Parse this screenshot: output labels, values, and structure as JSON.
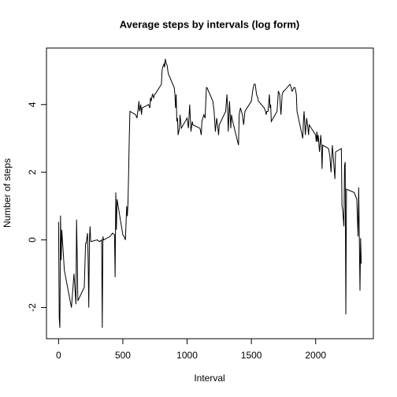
{
  "chart_data": {
    "type": "line",
    "title": "Average steps by intervals (log form)",
    "x_label": "Interval",
    "y_label": "Number of steps",
    "color": "#000000",
    "xlim": [
      -94.2,
      2449.2
    ],
    "ylim": [
      -2.92,
      5.67
    ],
    "xticks": [
      0,
      500,
      1000,
      1500,
      2000
    ],
    "yticks": [
      -2,
      0,
      2,
      4
    ],
    "grid": false,
    "x": [
      0,
      5,
      10,
      15,
      20,
      25,
      45,
      100,
      110,
      120,
      135,
      140,
      145,
      150,
      200,
      210,
      215,
      225,
      230,
      235,
      240,
      245,
      250,
      300,
      320,
      335,
      340,
      345,
      350,
      400,
      420,
      435,
      440,
      445,
      450,
      455,
      500,
      510,
      520,
      530,
      535,
      540,
      545,
      550,
      555,
      600,
      610,
      620,
      625,
      630,
      640,
      645,
      650,
      700,
      710,
      715,
      720,
      730,
      740,
      745,
      750,
      800,
      805,
      810,
      815,
      820,
      825,
      830,
      835,
      840,
      845,
      850,
      855,
      900,
      905,
      910,
      915,
      920,
      925,
      930,
      935,
      940,
      945,
      950,
      955,
      1000,
      1010,
      1020,
      1030,
      1040,
      1045,
      1100,
      1110,
      1115,
      1130,
      1140,
      1150,
      1155,
      1200,
      1210,
      1215,
      1220,
      1230,
      1240,
      1245,
      1250,
      1300,
      1310,
      1315,
      1320,
      1330,
      1340,
      1345,
      1355,
      1400,
      1405,
      1415,
      1430,
      1440,
      1450,
      1500,
      1510,
      1520,
      1530,
      1540,
      1550,
      1555,
      1600,
      1610,
      1615,
      1620,
      1630,
      1640,
      1645,
      1650,
      1655,
      1700,
      1710,
      1720,
      1730,
      1740,
      1750,
      1755,
      1800,
      1810,
      1815,
      1820,
      1830,
      1840,
      1850,
      1855,
      1900,
      1905,
      1910,
      1920,
      1930,
      1940,
      1945,
      1950,
      2000,
      2005,
      2010,
      2015,
      2020,
      2030,
      2040,
      2045,
      2050,
      2055,
      2100,
      2110,
      2120,
      2130,
      2140,
      2150,
      2155,
      2200,
      2205,
      2210,
      2220,
      2225,
      2230,
      2235,
      2240,
      2300,
      2320,
      2330,
      2335,
      2345,
      2350,
      2355
    ],
    "values": [
      0.53,
      -2.3,
      -2.6,
      0.72,
      -0.6,
      0.3,
      -0.9,
      -2.0,
      -1.5,
      -1.0,
      -1.9,
      0.6,
      -0.5,
      -1.8,
      -1.4,
      -0.1,
      -0.1,
      0.2,
      -0.6,
      -2.0,
      0.0,
      0.4,
      -0.05,
      0.0,
      -0.05,
      0.0,
      -2.6,
      0.1,
      0.0,
      0.1,
      0.2,
      0.15,
      -1.1,
      1.4,
      0.3,
      1.2,
      0.15,
      0.1,
      0.0,
      1.0,
      0.7,
      1.1,
      2.0,
      3.0,
      3.8,
      3.7,
      3.6,
      3.9,
      4.1,
      3.8,
      4.0,
      3.7,
      3.9,
      4.0,
      3.9,
      4.2,
      4.1,
      4.3,
      4.2,
      4.3,
      4.3,
      4.6,
      5.0,
      5.1,
      5.15,
      5.2,
      5.1,
      5.35,
      5.25,
      5.2,
      5.15,
      5.0,
      4.9,
      4.5,
      4.3,
      3.9,
      4.3,
      3.5,
      3.6,
      3.1,
      3.2,
      3.3,
      3.7,
      3.5,
      3.3,
      3.6,
      3.3,
      4.0,
      3.2,
      3.5,
      3.4,
      3.3,
      3.1,
      3.5,
      3.7,
      3.6,
      4.5,
      4.5,
      4.1,
      3.8,
      3.5,
      3.2,
      3.6,
      3.3,
      3.1,
      3.4,
      3.8,
      4.3,
      3.9,
      3.2,
      4.1,
      3.3,
      3.7,
      3.5,
      2.8,
      3.7,
      3.9,
      3.7,
      3.4,
      3.8,
      4.1,
      4.4,
      4.6,
      4.6,
      4.3,
      4.2,
      4.1,
      3.9,
      3.8,
      3.7,
      3.8,
      3.8,
      4.3,
      3.9,
      4.0,
      3.5,
      3.8,
      4.4,
      4.3,
      3.7,
      4.3,
      4.4,
      4.4,
      4.6,
      4.5,
      4.4,
      4.4,
      4.5,
      4.5,
      4.3,
      3.8,
      3.0,
      3.5,
      3.8,
      3.1,
      3.6,
      3.3,
      3.1,
      3.4,
      3.1,
      2.9,
      3.2,
      2.9,
      3.1,
      2.6,
      3.1,
      2.8,
      2.1,
      2.8,
      2.7,
      2.5,
      2.0,
      2.8,
      2.3,
      1.8,
      2.6,
      2.7,
      1.0,
      0.9,
      0.4,
      2.2,
      2.3,
      -2.2,
      1.5,
      1.4,
      1.2,
      0.1,
      1.55,
      -1.5,
      0.05,
      -0.7
    ]
  }
}
